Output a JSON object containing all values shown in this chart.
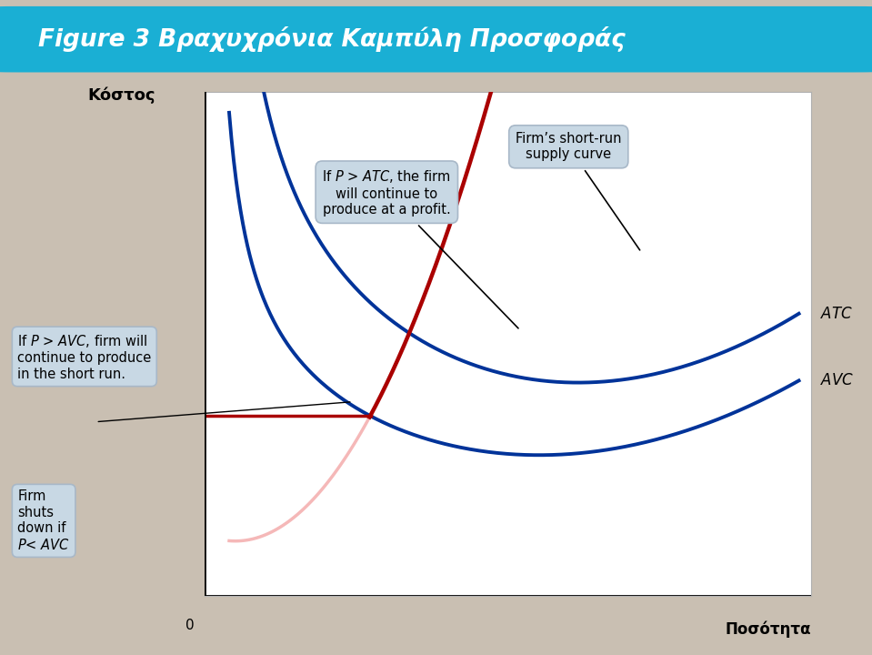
{
  "title": "Figure 3 Βραχυχρόνια Καμπύλη Προσφοράς",
  "title_color": "#ffffff",
  "title_bg_color": "#1aafd4",
  "outer_bg_color": "#c9bfb2",
  "ylabel": "Κόστος",
  "xlabel": "Ποσότητα",
  "mc_color": "#aa0000",
  "curve_color": "#003399",
  "shutdown_h_color": "#aa0000",
  "mc_below_color": "#f5b8b8",
  "ann_box_color": "#c8d8e4",
  "ann_box_edge": "#a8b8c8",
  "plot_border_color": "#b0b0b0"
}
